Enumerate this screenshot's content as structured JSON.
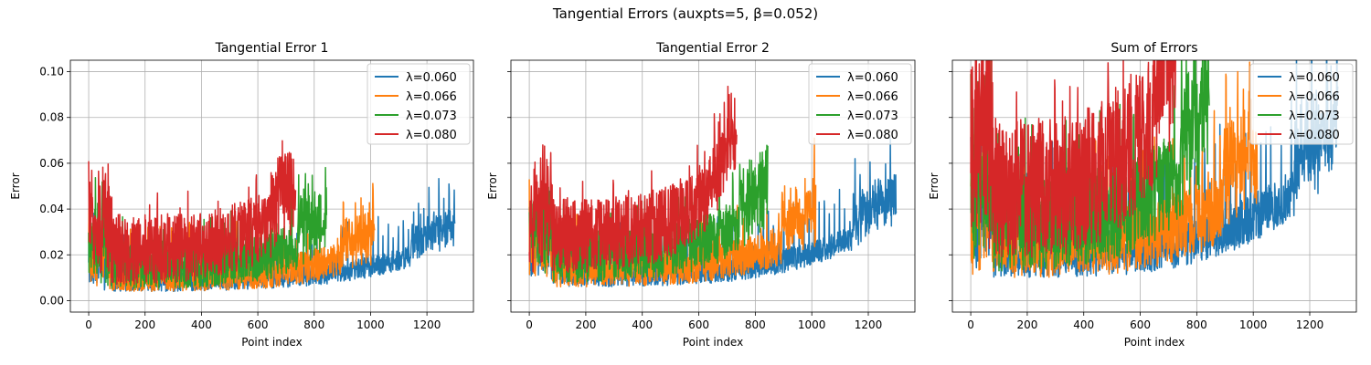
{
  "suptitle": "Tangential Errors (auxpts=5, β=0.052)",
  "chart_data": [
    {
      "type": "line",
      "title": "Tangential Error 1",
      "xlabel": "Point index",
      "ylabel": "Error",
      "xlim": [
        -65,
        1365
      ],
      "ylim": [
        -0.005,
        0.105
      ],
      "xticks": [
        0,
        200,
        400,
        600,
        800,
        1000,
        1200
      ],
      "yticks": [
        0.0,
        0.02,
        0.04,
        0.06,
        0.08,
        0.1
      ],
      "ytick_labels": [
        "0.00",
        "0.02",
        "0.04",
        "0.06",
        "0.08",
        "0.10"
      ],
      "grid": true,
      "legend_position": "top-right",
      "series": [
        {
          "name": "λ=0.060",
          "color": "#1f77b4",
          "n": 1300,
          "base": 0.004,
          "amp": 0.026,
          "seed": 11
        },
        {
          "name": "λ=0.066",
          "color": "#ff7f0e",
          "n": 1015,
          "base": 0.004,
          "amp": 0.03,
          "seed": 23
        },
        {
          "name": "λ=0.073",
          "color": "#2ca02c",
          "n": 845,
          "base": 0.005,
          "amp": 0.034,
          "seed": 37
        },
        {
          "name": "λ=0.080",
          "color": "#d62728",
          "n": 735,
          "base": 0.007,
          "amp": 0.04,
          "seed": 51
        }
      ]
    },
    {
      "type": "line",
      "title": "Tangential Error 2",
      "xlabel": "Point index",
      "ylabel": "Error",
      "xlim": [
        -65,
        1365
      ],
      "ylim": [
        -0.005,
        0.105
      ],
      "xticks": [
        0,
        200,
        400,
        600,
        800,
        1000,
        1200
      ],
      "yticks": [
        0.0,
        0.02,
        0.04,
        0.06,
        0.08,
        0.1
      ],
      "ytick_labels": [
        "",
        "",
        "",
        "",
        "",
        ""
      ],
      "grid": true,
      "legend_position": "top-right",
      "series": [
        {
          "name": "λ=0.060",
          "color": "#1f77b4",
          "n": 1300,
          "base": 0.006,
          "amp": 0.03,
          "seed": 61
        },
        {
          "name": "λ=0.066",
          "color": "#ff7f0e",
          "n": 1015,
          "base": 0.006,
          "amp": 0.034,
          "seed": 73
        },
        {
          "name": "λ=0.073",
          "color": "#2ca02c",
          "n": 845,
          "base": 0.008,
          "amp": 0.038,
          "seed": 89
        },
        {
          "name": "λ=0.080",
          "color": "#d62728",
          "n": 735,
          "base": 0.012,
          "amp": 0.042,
          "seed": 97
        }
      ]
    },
    {
      "type": "line",
      "title": "Sum of Errors",
      "xlabel": "Point index",
      "ylabel": "Error",
      "xlim": [
        -65,
        1365
      ],
      "ylim": [
        -0.005,
        0.105
      ],
      "xticks": [
        0,
        200,
        400,
        600,
        800,
        1000,
        1200
      ],
      "yticks": [
        0.0,
        0.02,
        0.04,
        0.06,
        0.08,
        0.1
      ],
      "ytick_labels": [
        "",
        "",
        "",
        "",
        "",
        ""
      ],
      "grid": true,
      "legend_position": "top-right",
      "series": [
        {
          "name": "λ=0.060",
          "color": "#1f77b4",
          "n": 1300,
          "base": 0.01,
          "amp": 0.06,
          "seed": 101
        },
        {
          "name": "λ=0.066",
          "color": "#ff7f0e",
          "n": 1015,
          "base": 0.01,
          "amp": 0.062,
          "seed": 113
        },
        {
          "name": "λ=0.073",
          "color": "#2ca02c",
          "n": 845,
          "base": 0.013,
          "amp": 0.068,
          "seed": 127
        },
        {
          "name": "λ=0.080",
          "color": "#d62728",
          "n": 735,
          "base": 0.018,
          "amp": 0.08,
          "seed": 131
        }
      ]
    }
  ]
}
